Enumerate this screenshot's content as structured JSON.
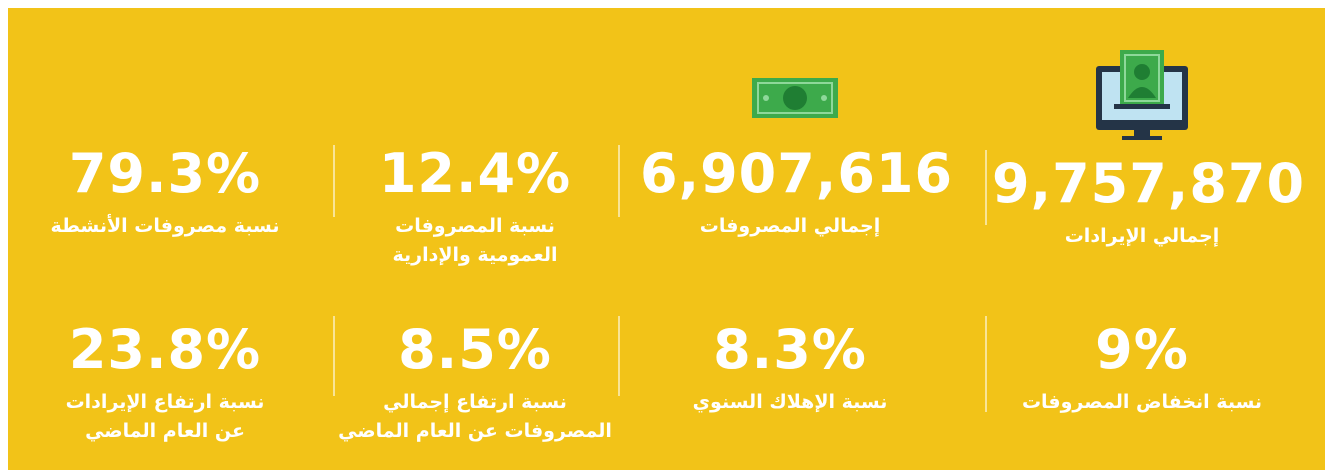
{
  "stats": [
    [
      {
        "value": "9,757,870",
        "label": [
          "إجمالي الإيرادات"
        ]
      },
      {
        "value": "6,907,616",
        "label": [
          "إجمالي المصروفات"
        ]
      },
      {
        "value": "12.4%",
        "label": [
          "نسبة المصروفات",
          "العمومية والإدارية"
        ]
      },
      {
        "value": "79.3%",
        "label": [
          "نسبة مصروفات الأنشطة"
        ]
      }
    ],
    [
      {
        "value": "9%",
        "label": [
          "نسبة انخفاض المصروفات"
        ]
      },
      {
        "value": "8.3%",
        "label": [
          "نسبة الإهلاك السنوي"
        ]
      },
      {
        "value": "8.5%",
        "label": [
          "نسبة ارتفاع إجمالي",
          "المصروفات عن العام الماضي"
        ]
      },
      {
        "value": "23.8%",
        "label": [
          "نسبة ارتفاع الإيرادات",
          "عن العام الماضي"
        ]
      }
    ]
  ]
}
